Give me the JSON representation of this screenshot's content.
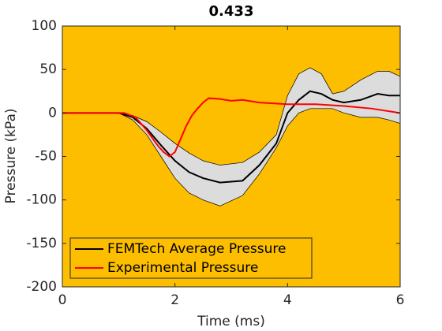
{
  "chart_data": {
    "type": "line",
    "title": "0.433",
    "xlabel": "Time (ms)",
    "ylabel": "Pressure (kPa)",
    "xlim": [
      0,
      6
    ],
    "ylim": [
      -200,
      100
    ],
    "xticks": [
      0,
      2,
      4,
      6
    ],
    "yticks": [
      -200,
      -150,
      -100,
      -50,
      0,
      50,
      100
    ],
    "background": "#fdbe00",
    "legend": "lower left",
    "band": {
      "color": "#dcdcdc",
      "x": [
        0,
        1,
        1.25,
        1.5,
        1.75,
        2,
        2.25,
        2.5,
        2.8,
        3.2,
        3.5,
        3.8,
        4,
        4.2,
        4.4,
        4.6,
        4.8,
        5,
        5.3,
        5.6,
        5.8,
        6
      ],
      "upper": [
        0,
        0,
        -3,
        -10,
        -22,
        -35,
        -46,
        -55,
        -60,
        -57,
        -45,
        -25,
        20,
        45,
        52,
        45,
        22,
        25,
        38,
        48,
        48,
        42
      ],
      "lower": [
        0,
        0,
        -8,
        -25,
        -50,
        -75,
        -92,
        -100,
        -107,
        -95,
        -70,
        -40,
        -15,
        0,
        5,
        5,
        5,
        0,
        -5,
        -5,
        -8,
        -12
      ]
    },
    "series": [
      {
        "name": "FEMTech Average Pressure",
        "color": "#000000",
        "x": [
          0,
          1,
          1.25,
          1.5,
          1.75,
          2,
          2.25,
          2.5,
          2.8,
          3.2,
          3.5,
          3.8,
          4,
          4.2,
          4.4,
          4.6,
          4.8,
          5,
          5.3,
          5.6,
          5.8,
          6
        ],
        "values": [
          0,
          0,
          -5,
          -18,
          -37,
          -55,
          -68,
          -75,
          -80,
          -78,
          -60,
          -35,
          0,
          15,
          25,
          22,
          15,
          12,
          15,
          22,
          20,
          20
        ]
      },
      {
        "name": "Experimental Pressure",
        "color": "#ff0000",
        "x": [
          0,
          1.1,
          1.3,
          1.5,
          1.7,
          1.8,
          1.9,
          2,
          2.1,
          2.2,
          2.3,
          2.4,
          2.5,
          2.6,
          2.8,
          3,
          3.2,
          3.5,
          4,
          4.5,
          5,
          5.5,
          6
        ],
        "values": [
          0,
          0,
          -5,
          -20,
          -38,
          -45,
          -50,
          -45,
          -30,
          -15,
          -3,
          5,
          12,
          17,
          16,
          14,
          15,
          12,
          10,
          10,
          8,
          5,
          0
        ]
      }
    ]
  }
}
